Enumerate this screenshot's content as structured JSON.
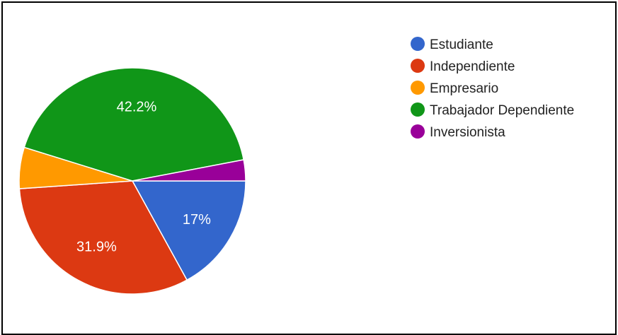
{
  "chart_data": {
    "type": "pie",
    "slices": [
      {
        "name": "Estudiante",
        "value": 17.0,
        "label": "17%",
        "color": "#3366cc"
      },
      {
        "name": "Independiente",
        "value": 31.9,
        "label": "31.9%",
        "color": "#dc3912"
      },
      {
        "name": "Empresario",
        "value": 5.9,
        "label": "",
        "color": "#ff9900"
      },
      {
        "name": "Trabajador Dependiente",
        "value": 42.2,
        "label": "42.2%",
        "color": "#109618"
      },
      {
        "name": "Inversionista",
        "value": 3.0,
        "label": "",
        "color": "#990099"
      }
    ],
    "start_direction": "right",
    "direction": "clockwise",
    "legend_position": "right"
  }
}
